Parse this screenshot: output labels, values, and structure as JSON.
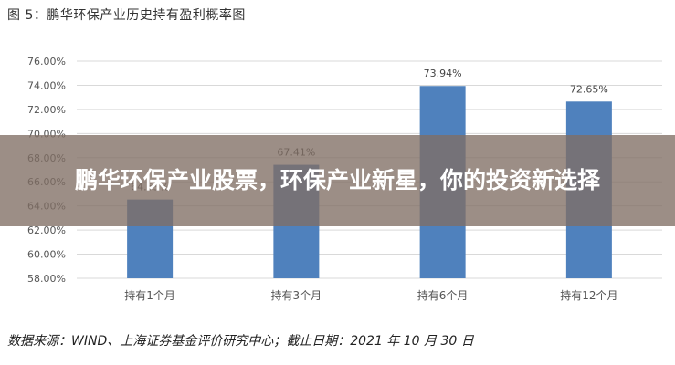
{
  "chart_data": {
    "type": "bar",
    "title": "图 5：鹏华环保产业历史持有盈利概率图",
    "categories": [
      "持有1个月",
      "持有3个月",
      "持有6个月",
      "持有12个月"
    ],
    "values": [
      64.53,
      67.41,
      73.94,
      72.65
    ],
    "data_labels": [
      "64.53%",
      "67.41%",
      "73.94%",
      "72.65%"
    ],
    "ylim": [
      58,
      76
    ],
    "yticks": [
      "58.00%",
      "60.00%",
      "62.00%",
      "64.00%",
      "66.00%",
      "68.00%",
      "70.00%",
      "72.00%",
      "74.00%",
      "76.00%"
    ],
    "grid": true,
    "bar_color": "#4f81bd"
  },
  "source_note": "数据来源：WIND、上海证券基金评价研究中心；截止日期：2021 年 10 月 30 日",
  "banner": {
    "headline": "鹏华环保产业股票，环保产业新星，你的投资新选择"
  }
}
